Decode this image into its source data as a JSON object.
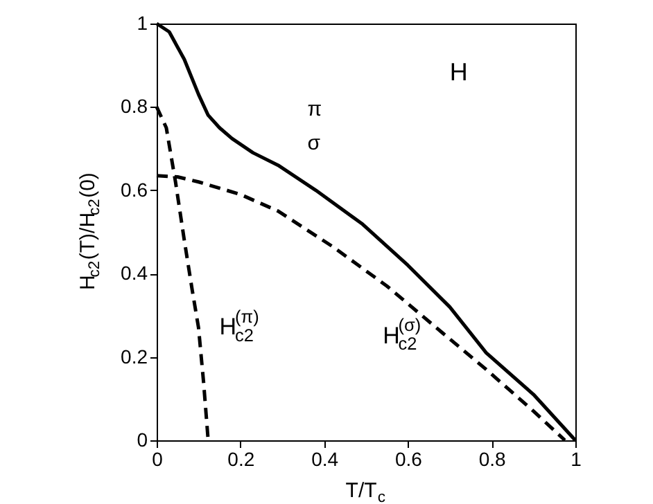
{
  "chart_data": {
    "type": "line",
    "xlabel": "T/T$_{c}$",
    "ylabel": "H$_{c2}$(T)/H$_{c2}$(0)",
    "xlim": [
      0,
      1
    ],
    "ylim": [
      0,
      1
    ],
    "xticks": [
      0,
      0.2,
      0.4,
      0.6,
      0.8,
      1
    ],
    "yticks": [
      0,
      0.2,
      0.4,
      0.6,
      0.8,
      1
    ],
    "grid": false,
    "series": [
      {
        "color": "#000000",
        "line_style": "solid",
        "x": [
          0,
          0.03,
          0.066,
          0.1,
          0.123,
          0.15,
          0.18,
          0.23,
          0.29,
          0.38,
          0.49,
          0.6,
          0.7,
          0.787,
          0.9,
          1
        ],
        "values": [
          1,
          0.98,
          0.914,
          0.83,
          0.78,
          0.75,
          0.724,
          0.69,
          0.66,
          0.6,
          0.52,
          0.42,
          0.32,
          0.21,
          0.11,
          0
        ]
      },
      {
        "color": "#000000",
        "line_style": "dashed",
        "x": [
          0,
          0.05,
          0.1,
          0.2,
          0.29,
          0.42,
          0.55,
          0.68,
          0.787,
          0.9,
          0.975
        ],
        "values": [
          0.635,
          0.632,
          0.62,
          0.59,
          0.55,
          0.465,
          0.37,
          0.26,
          0.17,
          0.07,
          0
        ]
      },
      {
        "color": "#000000",
        "line_style": "dashed",
        "x": [
          0,
          0.023,
          0.045,
          0.066,
          0.085,
          0.1,
          0.112,
          0.123
        ],
        "values": [
          0.8,
          0.75,
          0.62,
          0.48,
          0.36,
          0.27,
          0.14,
          0
        ]
      }
    ],
    "annotations": [
      "H$_{c2}$$^{(π)}$",
      "H$_{c2}$$^{(σ)}$",
      "π",
      "σ",
      "H"
    ]
  }
}
